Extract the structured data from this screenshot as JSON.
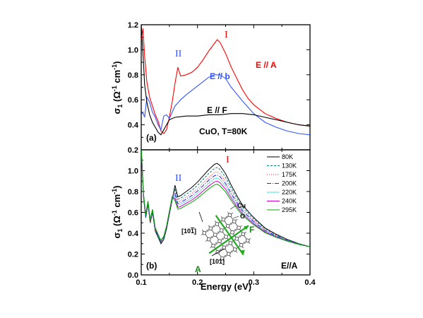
{
  "chart_data": [
    {
      "type": "line",
      "panel_label": "(a)",
      "ylabel": "σ1 (Ω-1 cm-1)",
      "ylim": [
        0.2,
        1.2
      ],
      "xlim": [
        0.1,
        0.4
      ],
      "yticks": [
        "0.2",
        "0.4",
        "0.6",
        "0.8",
        "1.0",
        "1.2"
      ],
      "annotations": {
        "roman_I": "I",
        "roman_II": "II",
        "sample": "CuO, T=80K"
      },
      "series": [
        {
          "name": "E // A",
          "color": "#ff0000",
          "x": [
            0.1,
            0.103,
            0.106,
            0.11,
            0.115,
            0.12,
            0.125,
            0.13,
            0.135,
            0.14,
            0.145,
            0.15,
            0.155,
            0.16,
            0.165,
            0.17,
            0.18,
            0.19,
            0.2,
            0.21,
            0.22,
            0.23,
            0.235,
            0.24,
            0.25,
            0.26,
            0.27,
            0.28,
            0.29,
            0.3,
            0.32,
            0.34,
            0.36,
            0.38,
            0.4
          ],
          "y": [
            1.08,
            1.17,
            0.95,
            0.74,
            0.62,
            0.55,
            0.48,
            0.43,
            0.35,
            0.33,
            0.36,
            0.46,
            0.58,
            0.73,
            0.86,
            0.79,
            0.8,
            0.82,
            0.86,
            0.92,
            0.99,
            1.05,
            1.08,
            1.06,
            0.97,
            0.86,
            0.77,
            0.68,
            0.61,
            0.56,
            0.49,
            0.45,
            0.42,
            0.4,
            0.39
          ]
        },
        {
          "name": "E // b",
          "color": "#3355ff",
          "x": [
            0.1,
            0.103,
            0.106,
            0.11,
            0.115,
            0.12,
            0.125,
            0.13,
            0.135,
            0.14,
            0.145,
            0.15,
            0.155,
            0.16,
            0.17,
            0.18,
            0.2,
            0.22,
            0.23,
            0.24,
            0.25,
            0.26,
            0.28,
            0.3,
            0.32,
            0.34,
            0.36,
            0.38,
            0.4
          ],
          "y": [
            0.48,
            0.5,
            0.46,
            0.62,
            0.58,
            0.5,
            0.46,
            0.4,
            0.36,
            0.47,
            0.48,
            0.45,
            0.5,
            0.55,
            0.6,
            0.64,
            0.71,
            0.78,
            0.8,
            0.8,
            0.77,
            0.7,
            0.59,
            0.49,
            0.42,
            0.38,
            0.35,
            0.33,
            0.32
          ]
        },
        {
          "name": "E // F",
          "color": "#000000",
          "x": [
            0.1,
            0.102,
            0.104,
            0.106,
            0.11,
            0.115,
            0.12,
            0.125,
            0.13,
            0.135,
            0.14,
            0.145,
            0.15,
            0.16,
            0.18,
            0.2,
            0.22,
            0.24,
            0.26,
            0.28,
            0.3,
            0.32,
            0.34,
            0.36,
            0.38,
            0.4
          ],
          "y": [
            1.2,
            1.05,
            0.9,
            0.72,
            0.58,
            0.48,
            0.42,
            0.38,
            0.34,
            0.32,
            0.36,
            0.4,
            0.44,
            0.46,
            0.47,
            0.47,
            0.48,
            0.48,
            0.49,
            0.49,
            0.48,
            0.46,
            0.44,
            0.42,
            0.4,
            0.39
          ]
        }
      ]
    },
    {
      "type": "line",
      "panel_label": "(b)",
      "xlabel": "Energy (eV)",
      "ylabel": "σ1 (Ω-1 cm-1)",
      "ylim": [
        0.0,
        1.2
      ],
      "xlim": [
        0.1,
        0.4
      ],
      "xticks": [
        "0.1",
        "0.2",
        "0.3",
        "0.4"
      ],
      "yticks": [
        "0.0",
        "0.2",
        "0.4",
        "0.6",
        "0.8",
        "1.0"
      ],
      "annotations": {
        "roman_I": "I",
        "roman_II": "II",
        "polarization": "E//A",
        "lattice_cu": "Cu",
        "lattice_o": "O",
        "lattice_f": "F",
        "lattice_a": "A",
        "dir_1": "[10 -1]",
        "dir_2": "[101]"
      },
      "legend_position": "top-right",
      "series": [
        {
          "name": "80K",
          "color": "#000000",
          "dash": "",
          "peak": 1.07
        },
        {
          "name": "130K",
          "color": "#008080",
          "dash": "3,2",
          "peak": 1.03
        },
        {
          "name": "175K",
          "color": "#ff2222",
          "dash": "1,2",
          "peak": 0.99
        },
        {
          "name": "200K",
          "color": "#2222ff",
          "dash": "6,2,1,2",
          "peak": 0.96
        },
        {
          "name": "220K",
          "color": "#00aaaa",
          "dash": "1,1",
          "peak": 0.93
        },
        {
          "name": "240K",
          "color": "#cc00cc",
          "dash": "",
          "peak": 0.9
        },
        {
          "name": "295K",
          "color": "#00aa00",
          "dash": "",
          "peak": 0.87
        }
      ]
    }
  ]
}
